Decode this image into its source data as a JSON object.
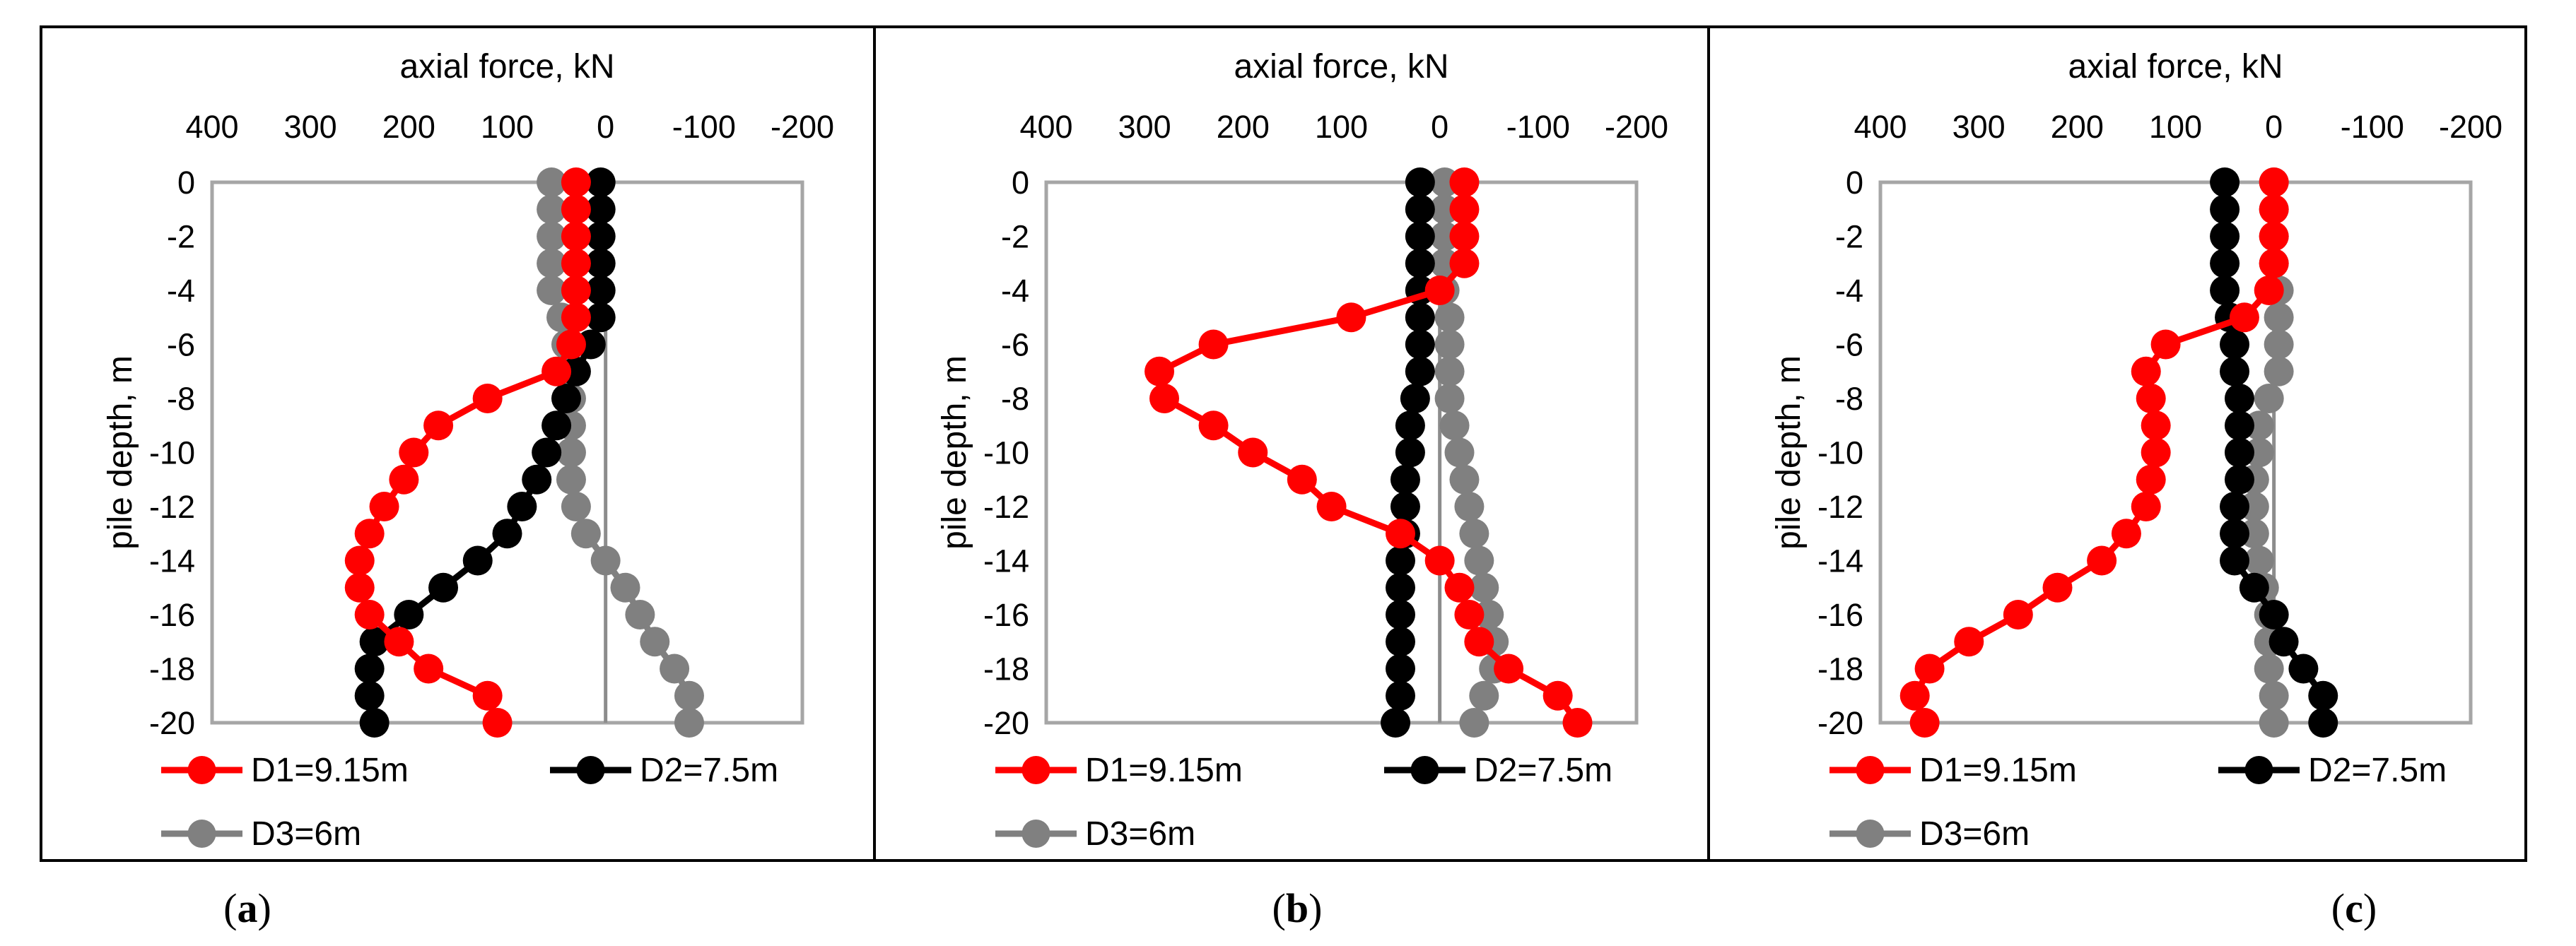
{
  "chart_data": [
    {
      "type": "line",
      "panel_label": "a",
      "xlabel": "axial force, kN",
      "ylabel": "pile depth, m",
      "xlim": [
        400,
        -200
      ],
      "ylim": [
        0,
        -20
      ],
      "x_ticks": [
        "400",
        "300",
        "200",
        "100",
        "0",
        "-100",
        "-200"
      ],
      "y_ticks": [
        "0",
        "-2",
        "-4",
        "-6",
        "-8",
        "-10",
        "-12",
        "-14",
        "-16",
        "-18",
        "-20"
      ],
      "x_tick_values": [
        400,
        300,
        200,
        100,
        0,
        -100,
        -200
      ],
      "y_tick_values": [
        0,
        -2,
        -4,
        -6,
        -8,
        -10,
        -12,
        -14,
        -16,
        -18,
        -20
      ],
      "legend": "bottom",
      "series": [
        {
          "name": "D1=9.15m",
          "color": "#ff0000",
          "depth": [
            0,
            -1,
            -2,
            -3,
            -4,
            -5,
            -6,
            -7,
            -8,
            -9,
            -10,
            -11,
            -12,
            -13,
            -14,
            -15,
            -16,
            -17,
            -18,
            -19,
            -20
          ],
          "force": [
            30,
            30,
            30,
            30,
            30,
            30,
            35,
            50,
            120,
            170,
            195,
            205,
            225,
            240,
            250,
            250,
            240,
            210,
            180,
            120,
            110
          ]
        },
        {
          "name": "D2=7.5m",
          "color": "#000000",
          "depth": [
            0,
            -1,
            -2,
            -3,
            -4,
            -5,
            -6,
            -7,
            -8,
            -9,
            -10,
            -11,
            -12,
            -13,
            -14,
            -15,
            -16,
            -17,
            -18,
            -19,
            -20
          ],
          "force": [
            5,
            5,
            5,
            5,
            5,
            5,
            15,
            30,
            40,
            50,
            60,
            70,
            85,
            100,
            130,
            165,
            200,
            235,
            240,
            240,
            235
          ]
        },
        {
          "name": "D3=6m",
          "color": "#808080",
          "depth": [
            0,
            -1,
            -2,
            -3,
            -4,
            -5,
            -6,
            -7,
            -8,
            -9,
            -10,
            -11,
            -12,
            -13,
            -14,
            -15,
            -16,
            -17,
            -18,
            -19,
            -20
          ],
          "force": [
            55,
            55,
            55,
            55,
            55,
            45,
            40,
            40,
            35,
            35,
            35,
            35,
            30,
            20,
            0,
            -20,
            -35,
            -50,
            -70,
            -85,
            -85
          ]
        }
      ]
    },
    {
      "type": "line",
      "panel_label": "b",
      "xlabel": "axial force, kN",
      "ylabel": "pile depth, m",
      "xlim": [
        400,
        -200
      ],
      "ylim": [
        0,
        -20
      ],
      "x_ticks": [
        "400",
        "300",
        "200",
        "100",
        "0",
        "-100",
        "-200"
      ],
      "y_ticks": [
        "0",
        "-2",
        "-4",
        "-6",
        "-8",
        "-10",
        "-12",
        "-14",
        "-16",
        "-18",
        "-20"
      ],
      "x_tick_values": [
        400,
        300,
        200,
        100,
        0,
        -100,
        -200
      ],
      "y_tick_values": [
        0,
        -2,
        -4,
        -6,
        -8,
        -10,
        -12,
        -14,
        -16,
        -18,
        -20
      ],
      "legend": "bottom",
      "series": [
        {
          "name": "D1=9.15m",
          "color": "#ff0000",
          "depth": [
            0,
            -1,
            -2,
            -3,
            -4,
            -5,
            -6,
            -7,
            -8,
            -9,
            -10,
            -11,
            -12,
            -13,
            -14,
            -15,
            -16,
            -17,
            -18,
            -19,
            -20
          ],
          "force": [
            -25,
            -25,
            -25,
            -25,
            0,
            90,
            230,
            285,
            280,
            230,
            190,
            140,
            110,
            40,
            0,
            -20,
            -30,
            -40,
            -70,
            -120,
            -140
          ]
        },
        {
          "name": "D2=7.5m",
          "color": "#000000",
          "depth": [
            0,
            -1,
            -2,
            -3,
            -4,
            -5,
            -6,
            -7,
            -8,
            -9,
            -10,
            -11,
            -12,
            -13,
            -14,
            -15,
            -16,
            -17,
            -18,
            -19,
            -20
          ],
          "force": [
            20,
            20,
            20,
            20,
            20,
            20,
            20,
            20,
            25,
            30,
            30,
            35,
            35,
            35,
            40,
            40,
            40,
            40,
            40,
            40,
            45
          ]
        },
        {
          "name": "D3=6m",
          "color": "#808080",
          "depth": [
            0,
            -1,
            -2,
            -3,
            -4,
            -5,
            -6,
            -7,
            -8,
            -9,
            -10,
            -11,
            -12,
            -13,
            -14,
            -15,
            -16,
            -17,
            -18,
            -19,
            -20
          ],
          "force": [
            -5,
            -5,
            -5,
            -5,
            -5,
            -10,
            -10,
            -10,
            -10,
            -15,
            -20,
            -25,
            -30,
            -35,
            -40,
            -45,
            -50,
            -55,
            -55,
            -45,
            -35
          ]
        }
      ]
    },
    {
      "type": "line",
      "panel_label": "c",
      "xlabel": "axial force, kN",
      "ylabel": "pile depth, m",
      "xlim": [
        400,
        -200
      ],
      "ylim": [
        0,
        -20
      ],
      "x_ticks": [
        "400",
        "300",
        "200",
        "100",
        "0",
        "-100",
        "-200"
      ],
      "y_ticks": [
        "0",
        "-2",
        "-4",
        "-6",
        "-8",
        "-10",
        "-12",
        "-14",
        "-16",
        "-18",
        "-20"
      ],
      "x_tick_values": [
        400,
        300,
        200,
        100,
        0,
        -100,
        -200
      ],
      "y_tick_values": [
        0,
        -2,
        -4,
        -6,
        -8,
        -10,
        -12,
        -14,
        -16,
        -18,
        -20
      ],
      "legend": "bottom",
      "series": [
        {
          "name": "D1=9.15m",
          "color": "#ff0000",
          "depth": [
            0,
            -1,
            -2,
            -3,
            -4,
            -5,
            -6,
            -7,
            -8,
            -9,
            -10,
            -11,
            -12,
            -13,
            -14,
            -15,
            -16,
            -17,
            -18,
            -19,
            -20
          ],
          "force": [
            0,
            0,
            0,
            0,
            5,
            30,
            110,
            130,
            125,
            120,
            120,
            125,
            130,
            150,
            175,
            220,
            260,
            310,
            350,
            365,
            355
          ]
        },
        {
          "name": "D2=7.5m",
          "color": "#000000",
          "depth": [
            0,
            -1,
            -2,
            -3,
            -4,
            -5,
            -6,
            -7,
            -8,
            -9,
            -10,
            -11,
            -12,
            -13,
            -14,
            -15,
            -16,
            -17,
            -18,
            -19,
            -20
          ],
          "force": [
            50,
            50,
            50,
            50,
            50,
            45,
            40,
            40,
            35,
            35,
            35,
            35,
            40,
            40,
            40,
            20,
            0,
            -10,
            -30,
            -50,
            -50
          ]
        },
        {
          "name": "D3=6m",
          "color": "#808080",
          "depth": [
            0,
            -1,
            -2,
            -3,
            -4,
            -5,
            -6,
            -7,
            -8,
            -9,
            -10,
            -11,
            -12,
            -13,
            -14,
            -15,
            -16,
            -17,
            -18,
            -19,
            -20
          ],
          "force": [
            0,
            0,
            0,
            0,
            -5,
            -5,
            -5,
            -5,
            5,
            15,
            15,
            20,
            20,
            20,
            15,
            10,
            5,
            5,
            5,
            0,
            0
          ]
        }
      ]
    }
  ],
  "captions": [
    {
      "open": "(",
      "letter": "a",
      "close": ")"
    },
    {
      "open": "(",
      "letter": "b",
      "close": ")"
    },
    {
      "open": "(",
      "letter": "c",
      "close": ")"
    }
  ]
}
